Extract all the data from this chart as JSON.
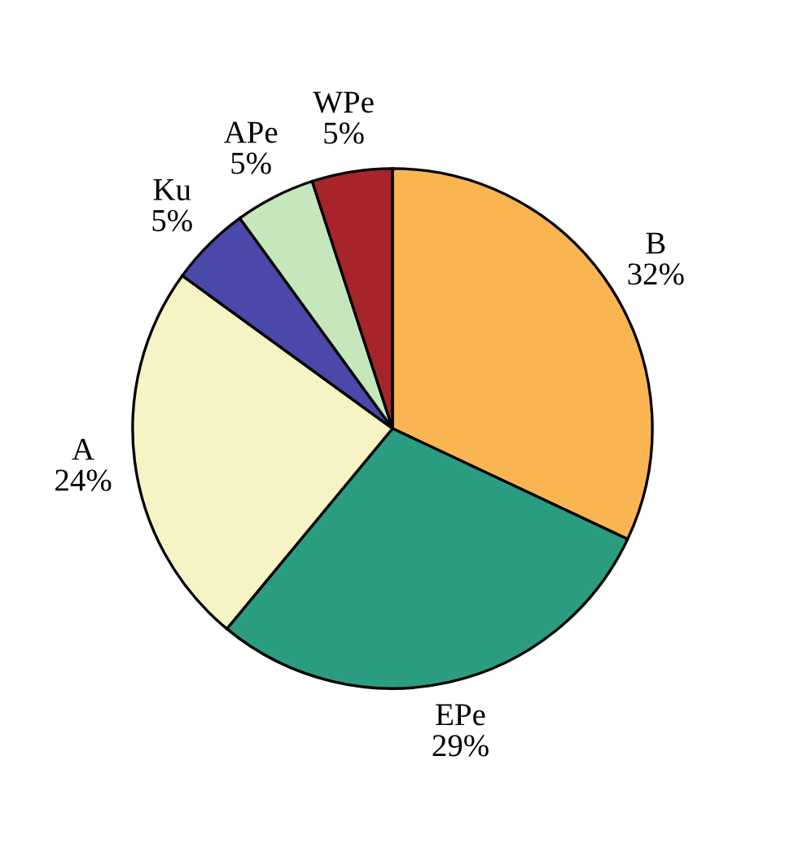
{
  "chart_data": {
    "type": "pie",
    "categories": [
      "B",
      "EPe",
      "A",
      "Ku",
      "APe",
      "WPe"
    ],
    "values": [
      32,
      29,
      24,
      5,
      5,
      5
    ],
    "value_labels": [
      "32%",
      "29%",
      "24%",
      "5%",
      "5%",
      "5%"
    ],
    "colors": [
      "#f9b552",
      "#2a9d80",
      "#f6f4c4",
      "#4a48a8",
      "#c6e6bb",
      "#a8242b"
    ]
  }
}
